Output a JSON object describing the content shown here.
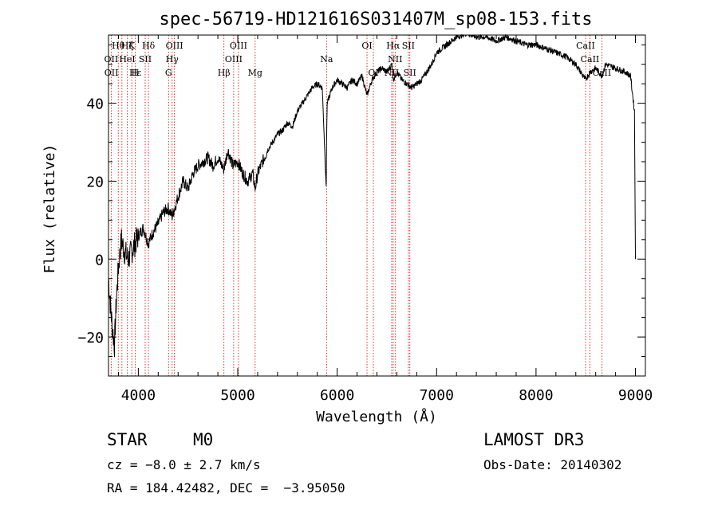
{
  "chart_data": {
    "type": "line",
    "title": "spec-56719-HD121616S031407M_sp08-153.fits",
    "xlabel": "Wavelength (Å)",
    "ylabel": "Flux (relative)",
    "xlim": [
      3700,
      9100
    ],
    "ylim": [
      -30,
      57.5
    ],
    "xticks": [
      4000,
      5000,
      6000,
      7000,
      8000,
      9000
    ],
    "yticks": [
      -20,
      0,
      20,
      40
    ],
    "x_tick_labels": [
      "4000",
      "5000",
      "6000",
      "7000",
      "8000",
      "9000"
    ],
    "y_tick_labels": [
      "−20",
      "0",
      "20",
      "40"
    ],
    "series": [
      {
        "name": "spectrum",
        "x": [
          3700,
          3720,
          3740,
          3760,
          3780,
          3800,
          3830,
          3860,
          3900,
          3950,
          4000,
          4050,
          4100,
          4150,
          4200,
          4250,
          4300,
          4340,
          4400,
          4450,
          4500,
          4550,
          4600,
          4650,
          4700,
          4750,
          4800,
          4861,
          4900,
          4950,
          5000,
          5050,
          5100,
          5150,
          5175,
          5200,
          5250,
          5300,
          5350,
          5400,
          5450,
          5500,
          5550,
          5600,
          5650,
          5700,
          5750,
          5800,
          5850,
          5890,
          5893,
          5900,
          5950,
          6000,
          6050,
          6100,
          6150,
          6200,
          6250,
          6300,
          6350,
          6400,
          6450,
          6500,
          6550,
          6563,
          6600,
          6650,
          6700,
          6750,
          6800,
          6850,
          6900,
          6950,
          7000,
          7050,
          7100,
          7150,
          7200,
          7300,
          7400,
          7500,
          7600,
          7700,
          7800,
          7900,
          8000,
          8100,
          8200,
          8300,
          8400,
          8498,
          8542,
          8600,
          8662,
          8700,
          8800,
          8900,
          8950,
          8990,
          9000
        ],
        "y": [
          -5,
          -12,
          -18,
          -22,
          -10,
          -2,
          5,
          2,
          0,
          3,
          6,
          8,
          4,
          7,
          9,
          12,
          13,
          11,
          16,
          20,
          18,
          22,
          24,
          25,
          26,
          24,
          26,
          23,
          28,
          24,
          25,
          22,
          20,
          22,
          18,
          22,
          25,
          28,
          30,
          32,
          33,
          35,
          34,
          38,
          40,
          42,
          44,
          45,
          44,
          18,
          30,
          40,
          44,
          46,
          45,
          44,
          46,
          45,
          47,
          42,
          46,
          48,
          49,
          48,
          50,
          46,
          48,
          46,
          45,
          44,
          45,
          46,
          48,
          50,
          53,
          54,
          55,
          56,
          57,
          58,
          57,
          57,
          56,
          57,
          56,
          55,
          55,
          54,
          53,
          52,
          50,
          46,
          48,
          49,
          47,
          50,
          49,
          48,
          47,
          38,
          0
        ]
      }
    ],
    "line_ids": [
      {
        "label": "Hθ",
        "x": 3798,
        "row": 0
      },
      {
        "label": "Hζ",
        "x": 3889,
        "row": 0
      },
      {
        "label": "K",
        "x": 3934,
        "row": 0
      },
      {
        "label": "Hδ",
        "x": 4102,
        "row": 0
      },
      {
        "label": "OIII",
        "x": 4363,
        "row": 0
      },
      {
        "label": "OIII",
        "x": 5007,
        "row": 0
      },
      {
        "label": "OI",
        "x": 6300,
        "row": 0
      },
      {
        "label": "Hα",
        "x": 6563,
        "row": 0
      },
      {
        "label": "SII",
        "x": 6716,
        "row": 0
      },
      {
        "label": "CaII",
        "x": 8498,
        "row": 0
      },
      {
        "label": "OII",
        "x": 3727,
        "row": 1
      },
      {
        "label": "HeI",
        "x": 3889,
        "row": 1
      },
      {
        "label": "SII",
        "x": 4069,
        "row": 1
      },
      {
        "label": "Hγ",
        "x": 4340,
        "row": 1
      },
      {
        "label": "OIII",
        "x": 4959,
        "row": 1
      },
      {
        "label": "Na",
        "x": 5893,
        "row": 1
      },
      {
        "label": "NII",
        "x": 6583,
        "row": 1
      },
      {
        "label": "CaII",
        "x": 8542,
        "row": 1
      },
      {
        "label": "OII",
        "x": 3729,
        "row": 2
      },
      {
        "label": "Hε",
        "x": 3970,
        "row": 2
      },
      {
        "label": "H",
        "x": 3968,
        "row": 2
      },
      {
        "label": "G",
        "x": 4304,
        "row": 2
      },
      {
        "label": "Hβ",
        "x": 4861,
        "row": 2
      },
      {
        "label": "Mg",
        "x": 5175,
        "row": 2
      },
      {
        "label": "OI",
        "x": 6364,
        "row": 2
      },
      {
        "label": "NII",
        "x": 6548,
        "row": 2
      },
      {
        "label": "SII",
        "x": 6731,
        "row": 2
      },
      {
        "label": "CaII",
        "x": 8662,
        "row": 2
      }
    ],
    "line_marks": [
      3727,
      3798,
      3835,
      3889,
      3934,
      3968,
      4069,
      4102,
      4304,
      4340,
      4363,
      4861,
      4959,
      5007,
      5175,
      5893,
      6300,
      6364,
      6548,
      6563,
      6583,
      6716,
      6731,
      8498,
      8542,
      8662
    ]
  },
  "info": {
    "object_class": "STAR",
    "subclass": "M0",
    "survey": "LAMOST DR3",
    "cz": "cz = −8.0 ± 2.7 km/s",
    "obs_date": "Obs-Date: 20140302",
    "coords": "RA = 184.42482, DEC =  −3.95050"
  },
  "colors": {
    "axes": "#000000",
    "spectrum": "#000000",
    "line_marker": "#cc0000"
  }
}
